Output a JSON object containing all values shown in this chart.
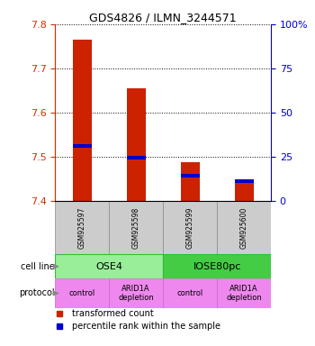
{
  "title": "GDS4826 / ILMN_3244571",
  "samples": [
    "GSM925597",
    "GSM925598",
    "GSM925599",
    "GSM925600"
  ],
  "bar_bottom": 7.4,
  "bar_tops": [
    7.765,
    7.655,
    7.487,
    7.443
  ],
  "blue_vals": [
    7.524,
    7.498,
    7.456,
    7.444
  ],
  "ylim": [
    7.4,
    7.8
  ],
  "yticks": [
    7.4,
    7.5,
    7.6,
    7.7,
    7.8
  ],
  "right_yticks": [
    0,
    25,
    50,
    75,
    100
  ],
  "right_ylim": [
    0,
    100
  ],
  "bar_color": "#cc2200",
  "blue_color": "#0000cc",
  "bar_width": 0.35,
  "cell_line_groups": [
    {
      "label": "OSE4",
      "span": [
        0,
        2
      ],
      "color": "#99ee99"
    },
    {
      "label": "IOSE80pc",
      "span": [
        2,
        4
      ],
      "color": "#44cc44"
    }
  ],
  "protocol_labels": [
    "control",
    "ARID1A\ndepletion",
    "control",
    "ARID1A\ndepletion"
  ],
  "protocol_colors": [
    "#ee88ee",
    "#ee88ee",
    "#ee88ee",
    "#ee88ee"
  ],
  "sample_box_color": "#cccccc",
  "legend_items": [
    {
      "color": "#cc2200",
      "label": "transformed count"
    },
    {
      "color": "#0000cc",
      "label": "percentile rank within the sample"
    }
  ],
  "cell_line_label": "cell line",
  "protocol_label": "protocol",
  "left_axis_color": "#cc3300",
  "right_axis_color": "#0000cc",
  "grid_color": "#000000"
}
